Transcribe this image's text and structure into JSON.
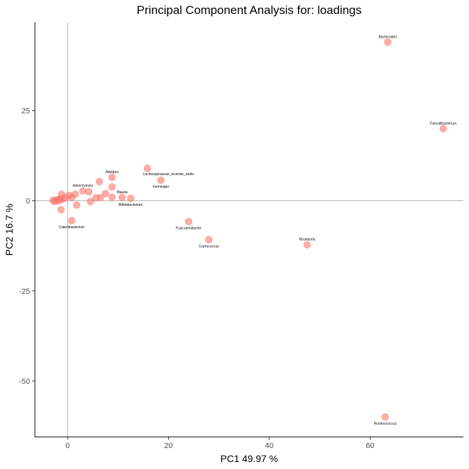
{
  "chart_data": {
    "type": "scatter",
    "title": "Principal Component Analysis for:  loadings",
    "xlabel": "PC1 49.97 %",
    "ylabel": "PC2 16.7 %",
    "xlim": [
      -6.5,
      78.5
    ],
    "ylim": [
      -65.5,
      49.5
    ],
    "xticks": [
      0,
      20,
      40,
      60
    ],
    "yticks": [
      -50,
      -25,
      0,
      25
    ],
    "reference_lines": {
      "x": 0,
      "y": 0
    },
    "grid": false,
    "legend": "none",
    "colors": {
      "point": "#f8766d",
      "reference_line": "#b3b3b3",
      "axis": "#000000"
    },
    "points": [
      {
        "x": 63.5,
        "y": 44,
        "label": "Bacteroides"
      },
      {
        "x": 74.5,
        "y": 20,
        "label": "Faecalibacterium"
      },
      {
        "x": 15.8,
        "y": 9,
        "label": "Lachnospiraceae_incertae_sedis"
      },
      {
        "x": 18.5,
        "y": 5.7,
        "label": "Gemmiger"
      },
      {
        "x": 8.8,
        "y": 6.5,
        "label": "Alistipes"
      },
      {
        "x": 6.3,
        "y": 5.3,
        "label": ""
      },
      {
        "x": 8.8,
        "y": 3.8,
        "label": ""
      },
      {
        "x": 3.0,
        "y": 2.7,
        "label": "Akkermansia"
      },
      {
        "x": 4.2,
        "y": 2.5,
        "label": ""
      },
      {
        "x": 7.5,
        "y": 2.0,
        "label": ""
      },
      {
        "x": 10.8,
        "y": 0.9,
        "label": "Blautia"
      },
      {
        "x": 12.5,
        "y": 0.7,
        "label": "Bifidobacterium"
      },
      {
        "x": 8.8,
        "y": 1.0,
        "label": ""
      },
      {
        "x": 6.5,
        "y": 0.9,
        "label": ""
      },
      {
        "x": 5.6,
        "y": 0.8,
        "label": ""
      },
      {
        "x": 4.5,
        "y": -0.2,
        "label": ""
      },
      {
        "x": 1.5,
        "y": 1.8,
        "label": ""
      },
      {
        "x": 1.8,
        "y": -1.2,
        "label": ""
      },
      {
        "x": 0.8,
        "y": 0.9,
        "label": ""
      },
      {
        "x": 0.3,
        "y": 1.5,
        "label": ""
      },
      {
        "x": -0.5,
        "y": 0.8,
        "label": ""
      },
      {
        "x": -1.2,
        "y": 1.8,
        "label": ""
      },
      {
        "x": -1.5,
        "y": 0.5,
        "label": ""
      },
      {
        "x": -1.8,
        "y": -0.1,
        "label": ""
      },
      {
        "x": -2.2,
        "y": 0.3,
        "label": ""
      },
      {
        "x": -2.6,
        "y": -0.2,
        "label": ""
      },
      {
        "x": -2.9,
        "y": 0.1,
        "label": ""
      },
      {
        "x": -1.0,
        "y": 0.4,
        "label": ""
      },
      {
        "x": -1.3,
        "y": -2.5,
        "label": ""
      },
      {
        "x": 0.8,
        "y": -5.5,
        "label": "Catenibacterium"
      },
      {
        "x": 24.0,
        "y": -5.8,
        "label": "Fusicatenibacter"
      },
      {
        "x": 28.0,
        "y": -10.8,
        "label": "Coprococcus"
      },
      {
        "x": 47.5,
        "y": -12.2,
        "label": "Roseburia"
      },
      {
        "x": 63.0,
        "y": -60.0,
        "label": "Ruminococcus"
      }
    ]
  }
}
